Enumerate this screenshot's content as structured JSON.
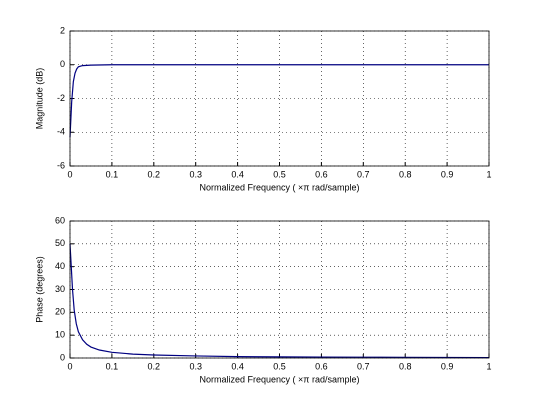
{
  "chart_data": [
    {
      "type": "line",
      "xlabel": "Normalized Frequency (  ×π rad/sample)",
      "ylabel": "Magnitude (dB)",
      "x": [
        0,
        0.004,
        0.008,
        0.012,
        0.016,
        0.02,
        0.03,
        0.05,
        0.1,
        0.2,
        0.3,
        0.4,
        0.5,
        0.6,
        0.7,
        0.8,
        0.9,
        1
      ],
      "values": [
        -4.3,
        -2.2,
        -1.0,
        -0.5,
        -0.25,
        -0.12,
        -0.05,
        -0.02,
        0,
        0,
        0,
        0,
        0,
        0,
        0,
        0,
        0,
        0
      ],
      "color": "#000080",
      "xlim": [
        0,
        1
      ],
      "ylim": [
        -6,
        2
      ],
      "xticks": [
        0,
        0.1,
        0.2,
        0.3,
        0.4,
        0.5,
        0.6,
        0.7,
        0.8,
        0.9,
        1
      ],
      "yticks": [
        -6,
        -4,
        -2,
        0,
        2
      ],
      "grid": true
    },
    {
      "type": "line",
      "xlabel": "Normalized Frequency (  ×π rad/sample)",
      "ylabel": "Phase (degrees)",
      "x": [
        0,
        0.003,
        0.006,
        0.01,
        0.015,
        0.02,
        0.03,
        0.04,
        0.05,
        0.07,
        0.1,
        0.15,
        0.2,
        0.3,
        0.4,
        0.5,
        0.6,
        0.7,
        0.8,
        0.9,
        1
      ],
      "values": [
        50,
        40,
        30,
        21,
        15,
        11.5,
        8,
        6,
        4.8,
        3.5,
        2.5,
        1.7,
        1.3,
        0.9,
        0.6,
        0.5,
        0.4,
        0.35,
        0.3,
        0.25,
        0.2
      ],
      "color": "#000080",
      "xlim": [
        0,
        1
      ],
      "ylim": [
        0,
        60
      ],
      "xticks": [
        0,
        0.1,
        0.2,
        0.3,
        0.4,
        0.5,
        0.6,
        0.7,
        0.8,
        0.9,
        1
      ],
      "yticks": [
        0,
        10,
        20,
        30,
        40,
        50,
        60
      ],
      "grid": true
    }
  ]
}
